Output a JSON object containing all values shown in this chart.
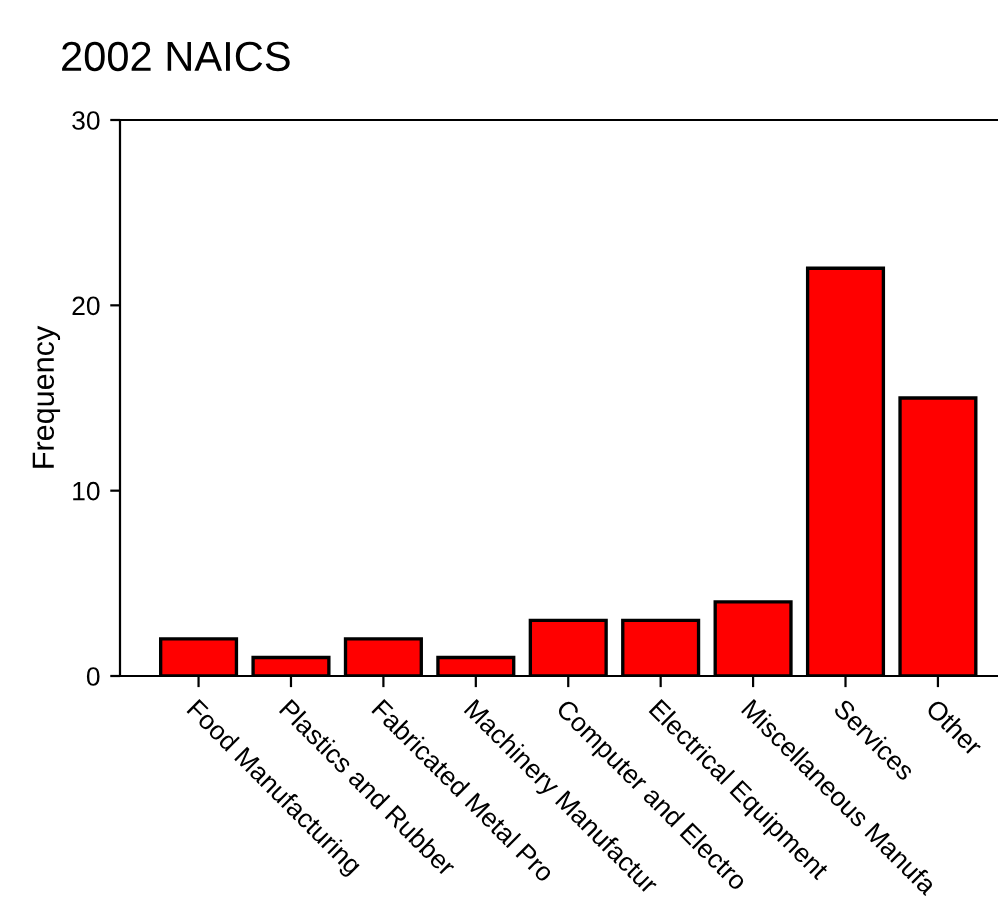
{
  "chart_data": {
    "type": "bar",
    "title": "2002 NAICS",
    "ylabel": "Frequency",
    "categories": [
      "Food Manufacturing",
      "Plastics and Rubber",
      "Fabricated Metal Pro",
      "Machinery Manufactur",
      "Computer and Electro",
      "Electrical Equipment",
      "Miscellaneous Manufa",
      "Services",
      "Other"
    ],
    "values": [
      2,
      1,
      2,
      1,
      3,
      3,
      4,
      22,
      15
    ],
    "color": "#ff0000",
    "ylim": [
      0,
      30
    ],
    "yticks": [
      0,
      10,
      20,
      30
    ],
    "grid": false
  }
}
